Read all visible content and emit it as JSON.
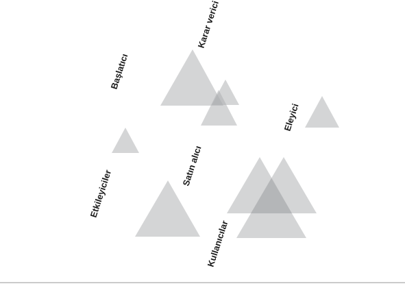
{
  "diagram": {
    "roles": [
      {
        "id": "baslatici",
        "label": "Başlatıcı"
      },
      {
        "id": "karar-verici",
        "label": "Karar verici"
      },
      {
        "id": "eleyici",
        "label": "Eleyici"
      },
      {
        "id": "etkileyiciler",
        "label": "Etkileyiciler"
      },
      {
        "id": "satin-alici",
        "label": "Satın alıcı"
      },
      {
        "id": "kullanicilar",
        "label": "Kullanıcılar"
      }
    ],
    "colors": {
      "triangle": "#a9abae",
      "label": "#1a1a1a",
      "baseline": "#b8b8b8"
    }
  }
}
